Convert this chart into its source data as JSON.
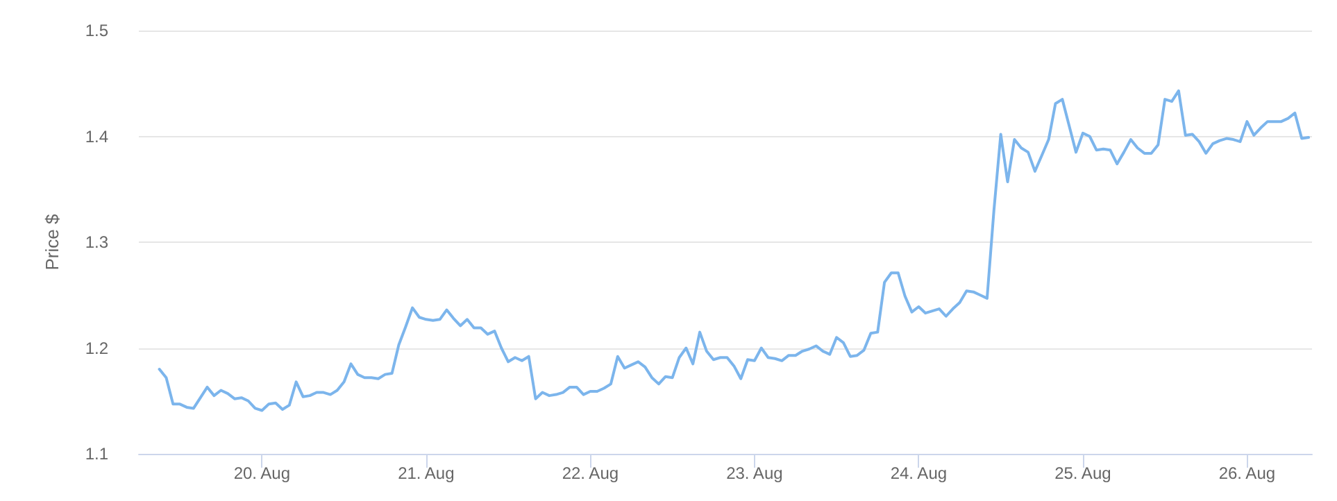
{
  "chart_data": {
    "type": "line",
    "ylabel": "Price $",
    "color": "#7cb5ec",
    "marker": "none",
    "line_style": "solid",
    "grid": "y",
    "xlim": [
      "--08-19T06:00",
      "--08-26T09:30"
    ],
    "xticks": [
      {
        "value": "--08-20",
        "label": "20. Aug"
      },
      {
        "value": "--08-21",
        "label": "21. Aug"
      },
      {
        "value": "--08-22",
        "label": "22. Aug"
      },
      {
        "value": "--08-23",
        "label": "23. Aug"
      },
      {
        "value": "--08-24",
        "label": "24. Aug"
      },
      {
        "value": "--08-25",
        "label": "25. Aug"
      },
      {
        "value": "--08-26",
        "label": "26. Aug"
      }
    ],
    "ylim": [
      1.1,
      1.5
    ],
    "yticks": [
      1.1,
      1.2,
      1.3,
      1.4,
      1.5
    ],
    "x": [
      "--08-19T09:00",
      "--08-19T10:00",
      "--08-19T11:00",
      "--08-19T12:00",
      "--08-19T13:00",
      "--08-19T14:00",
      "--08-19T15:00",
      "--08-19T16:00",
      "--08-19T17:00",
      "--08-19T18:00",
      "--08-19T19:00",
      "--08-19T20:00",
      "--08-19T21:00",
      "--08-19T22:00",
      "--08-19T23:00",
      "--08-20T00:00",
      "--08-20T01:00",
      "--08-20T02:00",
      "--08-20T03:00",
      "--08-20T04:00",
      "--08-20T05:00",
      "--08-20T06:00",
      "--08-20T07:00",
      "--08-20T08:00",
      "--08-20T09:00",
      "--08-20T10:00",
      "--08-20T11:00",
      "--08-20T12:00",
      "--08-20T13:00",
      "--08-20T14:00",
      "--08-20T15:00",
      "--08-20T16:00",
      "--08-20T17:00",
      "--08-20T18:00",
      "--08-20T19:00",
      "--08-20T20:00",
      "--08-20T21:00",
      "--08-20T22:00",
      "--08-20T23:00",
      "--08-21T00:00",
      "--08-21T01:00",
      "--08-21T02:00",
      "--08-21T03:00",
      "--08-21T04:00",
      "--08-21T05:00",
      "--08-21T06:00",
      "--08-21T07:00",
      "--08-21T08:00",
      "--08-21T09:00",
      "--08-21T10:00",
      "--08-21T11:00",
      "--08-21T12:00",
      "--08-21T13:00",
      "--08-21T14:00",
      "--08-21T15:00",
      "--08-21T16:00",
      "--08-21T17:00",
      "--08-21T18:00",
      "--08-21T19:00",
      "--08-21T20:00",
      "--08-21T21:00",
      "--08-21T22:00",
      "--08-21T23:00",
      "--08-22T00:00",
      "--08-22T01:00",
      "--08-22T02:00",
      "--08-22T03:00",
      "--08-22T04:00",
      "--08-22T05:00",
      "--08-22T06:00",
      "--08-22T07:00",
      "--08-22T08:00",
      "--08-22T09:00",
      "--08-22T10:00",
      "--08-22T11:00",
      "--08-22T12:00",
      "--08-22T13:00",
      "--08-22T14:00",
      "--08-22T15:00",
      "--08-22T16:00",
      "--08-22T17:00",
      "--08-22T18:00",
      "--08-22T19:00",
      "--08-22T20:00",
      "--08-22T21:00",
      "--08-22T22:00",
      "--08-22T23:00",
      "--08-23T00:00",
      "--08-23T01:00",
      "--08-23T02:00",
      "--08-23T03:00",
      "--08-23T04:00",
      "--08-23T05:00",
      "--08-23T06:00",
      "--08-23T07:00",
      "--08-23T08:00",
      "--08-23T09:00",
      "--08-23T10:00",
      "--08-23T11:00",
      "--08-23T12:00",
      "--08-23T13:00",
      "--08-23T14:00",
      "--08-23T15:00",
      "--08-23T16:00",
      "--08-23T17:00",
      "--08-23T18:00",
      "--08-23T19:00",
      "--08-23T20:00",
      "--08-23T21:00",
      "--08-23T22:00",
      "--08-23T23:00",
      "--08-24T00:00",
      "--08-24T01:00",
      "--08-24T02:00",
      "--08-24T03:00",
      "--08-24T04:00",
      "--08-24T05:00",
      "--08-24T06:00",
      "--08-24T07:00",
      "--08-24T08:00",
      "--08-24T09:00",
      "--08-24T10:00",
      "--08-24T11:00",
      "--08-24T12:00",
      "--08-24T13:00",
      "--08-24T14:00",
      "--08-24T15:00",
      "--08-24T16:00",
      "--08-24T17:00",
      "--08-24T18:00",
      "--08-24T19:00",
      "--08-24T20:00",
      "--08-24T21:00",
      "--08-24T22:00",
      "--08-24T23:00",
      "--08-25T00:00",
      "--08-25T01:00",
      "--08-25T02:00",
      "--08-25T03:00",
      "--08-25T04:00",
      "--08-25T05:00",
      "--08-25T06:00",
      "--08-25T07:00",
      "--08-25T08:00",
      "--08-25T09:00",
      "--08-25T10:00",
      "--08-25T11:00",
      "--08-25T12:00",
      "--08-25T13:00",
      "--08-25T14:00",
      "--08-25T15:00",
      "--08-25T16:00",
      "--08-25T17:00",
      "--08-25T18:00",
      "--08-25T19:00",
      "--08-25T20:00",
      "--08-25T21:00",
      "--08-25T22:00",
      "--08-25T23:00",
      "--08-26T00:00",
      "--08-26T01:00",
      "--08-26T02:00",
      "--08-26T03:00",
      "--08-26T04:00",
      "--08-26T05:00",
      "--08-26T06:00",
      "--08-26T07:00",
      "--08-26T08:00",
      "--08-26T09:00"
    ],
    "values": [
      1.18,
      1.172,
      1.147,
      1.147,
      1.144,
      1.143,
      1.153,
      1.163,
      1.155,
      1.16,
      1.157,
      1.152,
      1.153,
      1.15,
      1.143,
      1.141,
      1.147,
      1.148,
      1.142,
      1.146,
      1.168,
      1.154,
      1.155,
      1.158,
      1.158,
      1.156,
      1.16,
      1.168,
      1.185,
      1.175,
      1.172,
      1.172,
      1.171,
      1.175,
      1.176,
      1.203,
      1.22,
      1.238,
      1.229,
      1.227,
      1.226,
      1.227,
      1.236,
      1.228,
      1.221,
      1.227,
      1.219,
      1.219,
      1.213,
      1.216,
      1.2,
      1.187,
      1.191,
      1.188,
      1.192,
      1.152,
      1.158,
      1.155,
      1.156,
      1.158,
      1.163,
      1.163,
      1.156,
      1.159,
      1.159,
      1.162,
      1.166,
      1.192,
      1.181,
      1.184,
      1.187,
      1.182,
      1.172,
      1.166,
      1.173,
      1.172,
      1.191,
      1.2,
      1.185,
      1.215,
      1.197,
      1.189,
      1.191,
      1.191,
      1.183,
      1.171,
      1.189,
      1.188,
      1.2,
      1.191,
      1.19,
      1.188,
      1.193,
      1.193,
      1.197,
      1.199,
      1.202,
      1.197,
      1.194,
      1.21,
      1.205,
      1.192,
      1.193,
      1.198,
      1.214,
      1.215,
      1.262,
      1.271,
      1.271,
      1.249,
      1.234,
      1.239,
      1.233,
      1.235,
      1.237,
      1.23,
      1.237,
      1.243,
      1.254,
      1.253,
      1.25,
      1.247,
      1.33,
      1.402,
      1.357,
      1.397,
      1.389,
      1.385,
      1.367,
      1.382,
      1.397,
      1.431,
      1.435,
      1.41,
      1.385,
      1.403,
      1.4,
      1.387,
      1.388,
      1.387,
      1.374,
      1.385,
      1.397,
      1.389,
      1.384,
      1.384,
      1.392,
      1.435,
      1.433,
      1.443,
      1.401,
      1.402,
      1.395,
      1.384,
      1.393,
      1.396,
      1.398,
      1.397,
      1.395,
      1.414,
      1.401,
      1.408,
      1.414,
      1.414,
      1.414,
      1.417,
      1.422,
      1.398,
      1.399
    ]
  }
}
